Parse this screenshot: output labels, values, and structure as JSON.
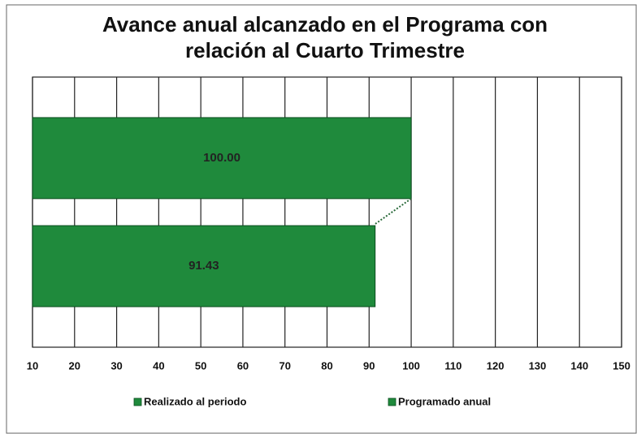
{
  "chart_data": {
    "type": "hbar",
    "title": "Avance anual alcanzado en el Programa con relación al Cuarto Trimestre",
    "categories": [
      null
    ],
    "series": [
      {
        "name": "Realizado al periodo",
        "color": "#1f8a3c",
        "values": [
          91.43
        ],
        "value_labels": [
          "91.43"
        ]
      },
      {
        "name": "Programado anual",
        "color": "#1f8a3c",
        "values": [
          100
        ],
        "value_labels": [
          "100.00"
        ]
      }
    ],
    "xlim": [
      10,
      150
    ],
    "xticks": [
      10,
      20,
      30,
      40,
      50,
      60,
      70,
      80,
      90,
      100,
      110,
      120,
      130,
      140,
      150
    ],
    "grid": true,
    "legend": "bottom"
  }
}
